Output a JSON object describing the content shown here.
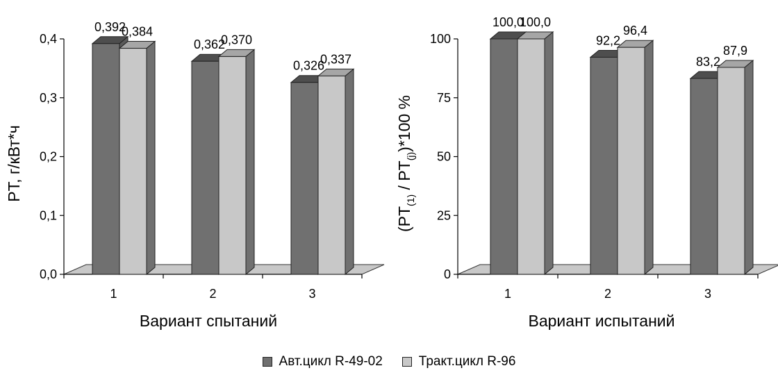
{
  "chart_data": [
    {
      "type": "bar",
      "categories": [
        "1",
        "2",
        "3"
      ],
      "series": [
        {
          "name": "Авт.цикл R-49-02",
          "values": [
            0.392,
            0.362,
            0.326
          ],
          "labels": [
            "0,392",
            "0,362",
            "0,326"
          ]
        },
        {
          "name": "Тракт.цикл R-96",
          "values": [
            0.384,
            0.37,
            0.337
          ],
          "labels": [
            "0,384",
            "0,370",
            "0,337"
          ]
        }
      ],
      "ylim": [
        0,
        0.4
      ],
      "yticks": [
        "0,0",
        "0,1",
        "0,2",
        "0,3",
        "0,4"
      ],
      "ylabel": "PT, г/кВт*ч",
      "xlabel": "Вариант спытаний",
      "grid": false
    },
    {
      "type": "bar",
      "categories": [
        "1",
        "2",
        "3"
      ],
      "series": [
        {
          "name": "Авт.цикл R-49-02",
          "values": [
            100.0,
            92.2,
            83.2
          ],
          "labels": [
            "100,0",
            "92,2",
            "83,2"
          ]
        },
        {
          "name": "Тракт.цикл R-96",
          "values": [
            100.0,
            96.4,
            87.9
          ],
          "labels": [
            "100,0",
            "96,4",
            "87,9"
          ]
        }
      ],
      "ylim": [
        0,
        100
      ],
      "yticks": [
        "0",
        "25",
        "50",
        "75",
        "100"
      ],
      "ylabel": {
        "open": "(PT",
        "sub1": "(1)",
        "mid": " / PT",
        "sub2": "(j)",
        "close": ")*100 %"
      },
      "xlabel": "Вариант испытаний",
      "grid": false
    }
  ],
  "legend": {
    "placement": "bottom-center",
    "items": [
      {
        "label": "Авт.цикл R-49-02",
        "color": "#707070"
      },
      {
        "label": "Тракт.цикл R-96",
        "color": "#c8c8c8"
      }
    ]
  },
  "colors": {
    "series1_front": "#707070",
    "series1_top": "#4e4e4e",
    "series1_side": "#5a5a5a",
    "series2_front": "#c8c8c8",
    "series2_top": "#a6a6a6",
    "series2_side": "#707070",
    "floor": "#c8c8c8"
  }
}
